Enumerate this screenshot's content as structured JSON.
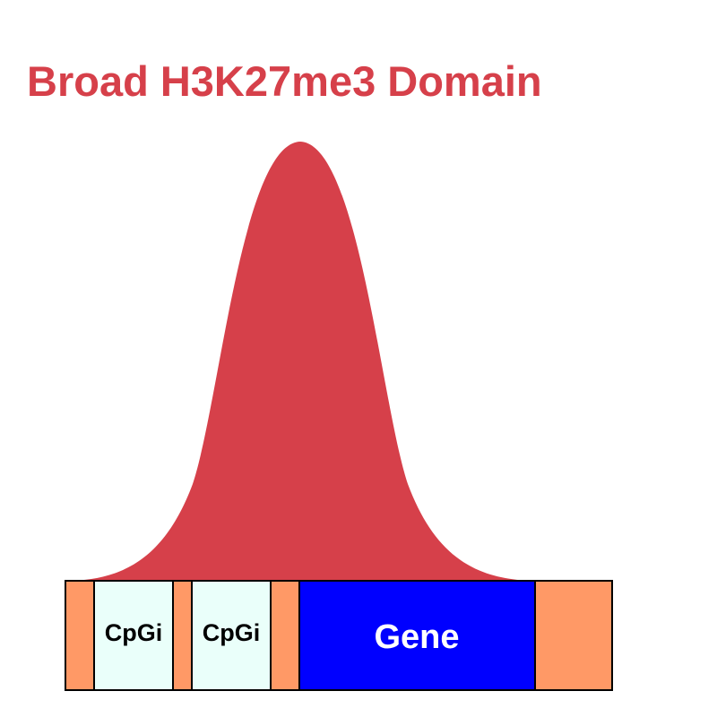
{
  "title": "Broad H3K27me3 Domain",
  "colors": {
    "title": "#d6404a",
    "peak": "#d6404a",
    "flank": "#ff9966",
    "cpg_fill": "#eafffa",
    "gene_fill": "#0000ff",
    "outline": "#000000",
    "cpg_text": "#000000",
    "gene_text": "#ffffff"
  },
  "segments": [
    {
      "kind": "flank",
      "label": ""
    },
    {
      "kind": "cpg",
      "label": "CpGi"
    },
    {
      "kind": "flank",
      "label": ""
    },
    {
      "kind": "cpg",
      "label": "CpGi"
    },
    {
      "kind": "flank",
      "label": ""
    },
    {
      "kind": "gene",
      "label": "Gene"
    },
    {
      "kind": "flank",
      "label": ""
    }
  ]
}
